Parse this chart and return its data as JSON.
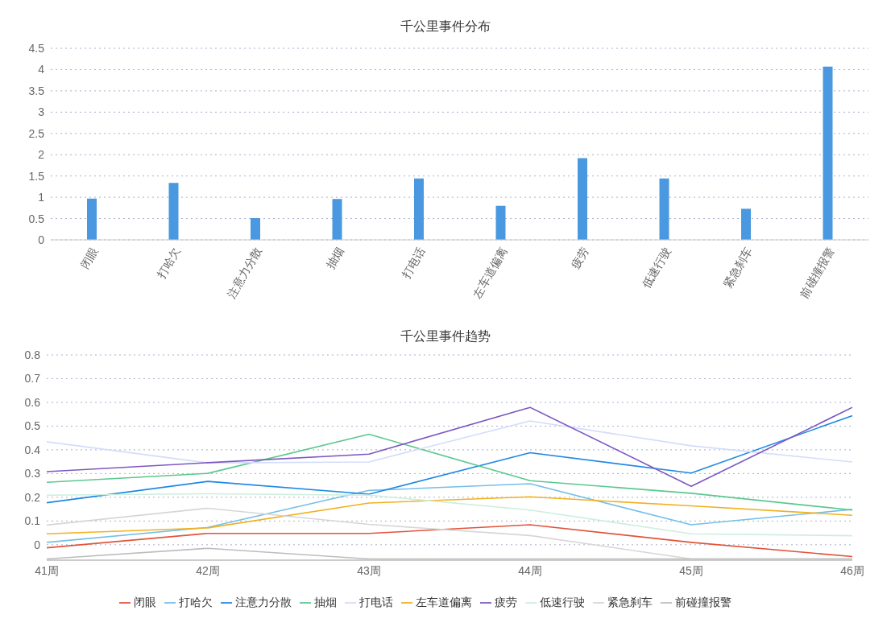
{
  "chart_data": [
    {
      "type": "bar",
      "title": "千公里事件分布",
      "categories": [
        "闭眼",
        "打哈欠",
        "注意力分散",
        "抽烟",
        "打电话",
        "左车道偏离",
        "疲劳",
        "低速行驶",
        "紧急刹车",
        "前碰撞报警"
      ],
      "values": [
        0.97,
        1.34,
        0.51,
        0.96,
        1.44,
        0.8,
        1.92,
        1.44,
        0.73,
        4.07
      ],
      "color": "#4a98e0",
      "ylim": [
        0,
        4.5
      ],
      "yticks": [
        0,
        0.5,
        1,
        1.5,
        2,
        2.5,
        3,
        3.5,
        4,
        4.5
      ],
      "grid": "y"
    },
    {
      "type": "line",
      "title": "千公里事件趋势",
      "categories": [
        "41周",
        "42周",
        "43周",
        "44周",
        "45周",
        "46周"
      ],
      "ylim": [
        -0.065,
        0.8
      ],
      "yticks": [
        0,
        0.1,
        0.2,
        0.3,
        0.4,
        0.5,
        0.6,
        0.7,
        0.8
      ],
      "grid": "y",
      "legend": "bottom",
      "marker": "none",
      "line_style": "solid",
      "series": [
        {
          "name": "闭眼",
          "color": "#e2533a",
          "values": [
            -0.013,
            0.048,
            0.048,
            0.084,
            0.01,
            -0.05
          ]
        },
        {
          "name": "打哈欠",
          "color": "#74bfe6",
          "values": [
            0.01,
            0.073,
            0.229,
            0.257,
            0.084,
            0.149
          ]
        },
        {
          "name": "注意力分散",
          "color": "#1e88e5",
          "values": [
            0.177,
            0.267,
            0.213,
            0.388,
            0.302,
            0.544
          ]
        },
        {
          "name": "抽烟",
          "color": "#5ac88e",
          "values": [
            0.263,
            0.301,
            0.466,
            0.27,
            0.217,
            0.146
          ]
        },
        {
          "name": "打电话",
          "color": "#d3dcfb",
          "values": [
            0.434,
            0.345,
            0.349,
            0.522,
            0.417,
            0.349
          ]
        },
        {
          "name": "左车道偏离",
          "color": "#f2b01e",
          "values": [
            0.046,
            0.071,
            0.176,
            0.202,
            0.164,
            0.124
          ]
        },
        {
          "name": "疲劳",
          "color": "#7e57c2",
          "values": [
            0.308,
            0.346,
            0.382,
            0.579,
            0.246,
            0.579
          ]
        },
        {
          "name": "低速行驶",
          "color": "#cdeedd",
          "values": [
            0.209,
            0.215,
            0.209,
            0.146,
            0.046,
            0.038
          ]
        },
        {
          "name": "紧急刹车",
          "color": "#d6d6d6",
          "values": [
            0.083,
            0.154,
            0.086,
            0.039,
            -0.06,
            -0.06
          ]
        },
        {
          "name": "前碰撞报警",
          "color": "#bdbdbd",
          "values": [
            -0.06,
            -0.015,
            -0.06,
            -0.06,
            -0.06,
            -0.06
          ]
        }
      ]
    }
  ]
}
